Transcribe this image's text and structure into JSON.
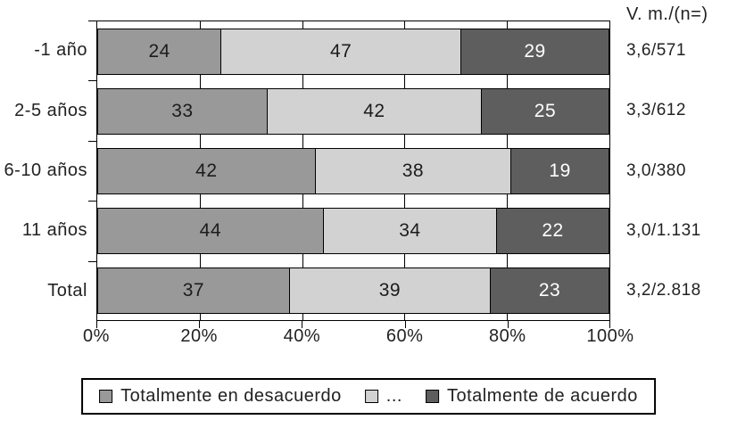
{
  "chart_data": {
    "type": "bar",
    "orientation": "horizontal",
    "stacked": true,
    "unit": "%",
    "categories": [
      "-1 año",
      "2-5 años",
      "6-10 años",
      "11 años",
      "Total"
    ],
    "series": [
      {
        "name": "Totalmente en desacuerdo",
        "color": "#999999",
        "text_color": "#1c1c1c",
        "values": [
          24,
          33,
          42,
          44,
          37
        ]
      },
      {
        "name": "...",
        "color": "#d2d2d2",
        "text_color": "#1c1c1c",
        "values": [
          47,
          42,
          38,
          34,
          39
        ]
      },
      {
        "name": "Totalmente de acuerdo",
        "color": "#5e5e5e",
        "text_color": "#ffffff",
        "values": [
          29,
          25,
          19,
          22,
          23
        ]
      }
    ],
    "right_header": "V. m./(n=)",
    "right_labels": [
      "3,6/571",
      "3,3/612",
      "3,0/380",
      "3,0/1.131",
      "3,2/2.818"
    ],
    "x_ticks": [
      "0%",
      "20%",
      "40%",
      "60%",
      "80%",
      "100%"
    ],
    "xlim": [
      0,
      100
    ],
    "grid": true,
    "legend_position": "bottom",
    "title": "",
    "xlabel": "",
    "ylabel": ""
  },
  "legend": [
    {
      "label": "Totalmente en desacuerdo",
      "color": "#999999"
    },
    {
      "label": "...",
      "color": "#d2d2d2"
    },
    {
      "label": "Totalmente de acuerdo",
      "color": "#5e5e5e"
    }
  ],
  "colors": {
    "axis": "#000000",
    "background": "#ffffff",
    "text": "#222222"
  }
}
